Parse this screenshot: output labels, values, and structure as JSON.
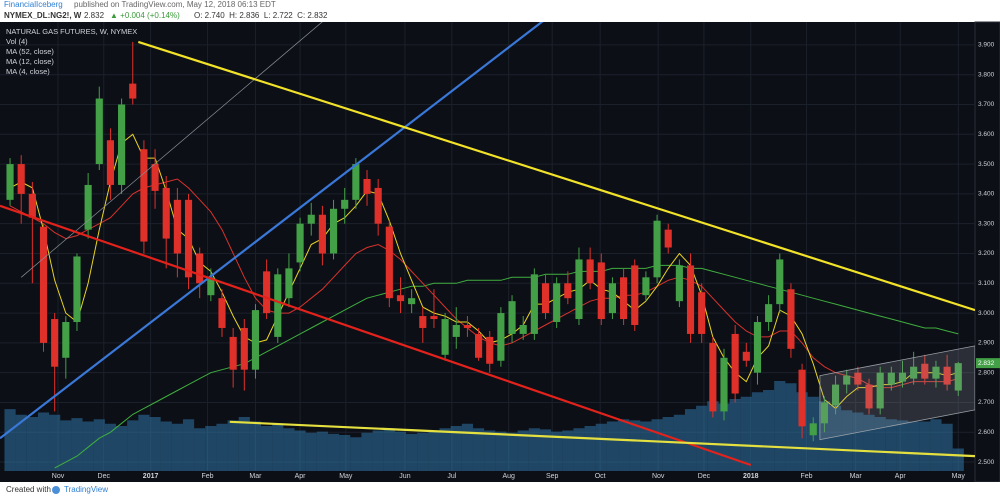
{
  "header": {
    "publisher": "FinancialIceberg",
    "published": "published on TradingView.com, May 12, 2018 06:13 EDT",
    "symbol": "NYMEX_DL:NG2!, W",
    "price": "2.832",
    "change": "▲ +0.004 (+0.14%)",
    "ohlc": "O: 2.740  H: 2.836  L: 2.722  C: 2.832"
  },
  "footer": {
    "created": "Created with",
    "brand": "TradingView"
  },
  "chart_data": {
    "type": "candlestick",
    "title": "NATURAL GAS FUTURES, W, NYMEX",
    "up_color": "#43a047",
    "down_color": "#e0302a",
    "candles": [
      [
        3.38,
        3.52,
        3.36,
        3.5
      ],
      [
        3.5,
        3.53,
        3.3,
        3.4
      ],
      [
        3.4,
        3.44,
        3.1,
        3.32
      ],
      [
        3.29,
        3.3,
        2.87,
        2.9
      ],
      [
        2.98,
        3.0,
        2.67,
        2.82
      ],
      [
        2.85,
        2.99,
        2.78,
        2.97
      ],
      [
        2.97,
        3.2,
        2.94,
        3.19
      ],
      [
        3.28,
        3.47,
        3.25,
        3.43
      ],
      [
        3.5,
        3.76,
        3.48,
        3.72
      ],
      [
        3.58,
        3.62,
        3.38,
        3.43
      ],
      [
        3.43,
        3.72,
        3.4,
        3.7
      ],
      [
        3.77,
        3.91,
        3.7,
        3.72
      ],
      [
        3.55,
        3.58,
        3.2,
        3.24
      ],
      [
        3.5,
        3.55,
        3.35,
        3.41
      ],
      [
        3.42,
        3.46,
        3.15,
        3.25
      ],
      [
        3.38,
        3.42,
        3.12,
        3.2
      ],
      [
        3.38,
        3.4,
        3.08,
        3.12
      ],
      [
        3.2,
        3.22,
        3.05,
        3.1
      ],
      [
        3.06,
        3.15,
        3.04,
        3.12
      ],
      [
        3.05,
        3.08,
        2.92,
        2.95
      ],
      [
        2.92,
        2.95,
        2.75,
        2.81
      ],
      [
        2.95,
        2.98,
        2.74,
        2.81
      ],
      [
        2.81,
        3.03,
        2.78,
        3.01
      ],
      [
        3.14,
        3.18,
        2.98,
        3.0
      ],
      [
        2.92,
        3.15,
        2.9,
        3.13
      ],
      [
        3.05,
        3.2,
        3.02,
        3.15
      ],
      [
        3.17,
        3.32,
        3.14,
        3.3
      ],
      [
        3.3,
        3.37,
        3.26,
        3.33
      ],
      [
        3.33,
        3.36,
        3.16,
        3.2
      ],
      [
        3.2,
        3.38,
        3.18,
        3.35
      ],
      [
        3.35,
        3.42,
        3.3,
        3.38
      ],
      [
        3.38,
        3.52,
        3.35,
        3.5
      ],
      [
        3.45,
        3.48,
        3.36,
        3.4
      ],
      [
        3.42,
        3.45,
        3.26,
        3.3
      ],
      [
        3.29,
        3.31,
        3.02,
        3.05
      ],
      [
        3.06,
        3.12,
        3.0,
        3.04
      ],
      [
        3.03,
        3.08,
        3.0,
        3.05
      ],
      [
        2.99,
        3.02,
        2.9,
        2.95
      ],
      [
        2.99,
        3.08,
        2.95,
        2.98
      ],
      [
        2.86,
        3.0,
        2.84,
        2.98
      ],
      [
        2.92,
        3.02,
        2.88,
        2.96
      ],
      [
        2.96,
        2.99,
        2.92,
        2.95
      ],
      [
        2.93,
        2.95,
        2.84,
        2.85
      ],
      [
        2.92,
        2.94,
        2.8,
        2.83
      ],
      [
        2.84,
        3.02,
        2.82,
        3.0
      ],
      [
        2.93,
        3.06,
        2.9,
        3.04
      ],
      [
        2.93,
        2.99,
        2.91,
        2.96
      ],
      [
        2.93,
        3.15,
        2.91,
        3.13
      ],
      [
        3.1,
        3.13,
        2.98,
        3.0
      ],
      [
        2.97,
        3.12,
        2.95,
        3.1
      ],
      [
        3.1,
        3.14,
        3.03,
        3.05
      ],
      [
        2.98,
        3.22,
        2.96,
        3.18
      ],
      [
        3.18,
        3.22,
        3.08,
        3.1
      ],
      [
        3.17,
        3.2,
        2.96,
        2.98
      ],
      [
        3.0,
        3.12,
        2.98,
        3.1
      ],
      [
        3.12,
        3.15,
        2.96,
        2.98
      ],
      [
        3.16,
        3.18,
        2.94,
        2.96
      ],
      [
        3.06,
        3.14,
        3.04,
        3.12
      ],
      [
        3.12,
        3.33,
        3.1,
        3.31
      ],
      [
        3.28,
        3.3,
        3.2,
        3.22
      ],
      [
        3.04,
        3.18,
        3.02,
        3.16
      ],
      [
        3.16,
        3.2,
        2.9,
        2.93
      ],
      [
        3.07,
        3.1,
        2.9,
        2.93
      ],
      [
        2.9,
        2.92,
        2.65,
        2.67
      ],
      [
        2.67,
        2.88,
        2.64,
        2.85
      ],
      [
        2.93,
        2.96,
        2.7,
        2.73
      ],
      [
        2.87,
        2.9,
        2.82,
        2.84
      ],
      [
        2.8,
        2.99,
        2.76,
        2.97
      ],
      [
        2.97,
        3.06,
        2.94,
        3.03
      ],
      [
        3.03,
        3.2,
        3.0,
        3.18
      ],
      [
        3.08,
        3.1,
        2.85,
        2.88
      ],
      [
        2.81,
        2.83,
        2.58,
        2.62
      ],
      [
        2.59,
        2.65,
        2.57,
        2.63
      ],
      [
        2.63,
        2.72,
        2.6,
        2.7
      ],
      [
        2.69,
        2.79,
        2.66,
        2.76
      ],
      [
        2.76,
        2.81,
        2.73,
        2.79
      ],
      [
        2.8,
        2.82,
        2.74,
        2.76
      ],
      [
        2.76,
        2.78,
        2.66,
        2.68
      ],
      [
        2.68,
        2.82,
        2.66,
        2.8
      ],
      [
        2.76,
        2.82,
        2.74,
        2.8
      ],
      [
        2.77,
        2.84,
        2.75,
        2.8
      ],
      [
        2.78,
        2.87,
        2.76,
        2.82
      ],
      [
        2.83,
        2.86,
        2.76,
        2.78
      ],
      [
        2.78,
        2.84,
        2.75,
        2.82
      ],
      [
        2.82,
        2.86,
        2.74,
        2.76
      ],
      [
        2.74,
        2.836,
        2.722,
        2.832
      ]
    ],
    "volume": {
      "name": "Vol (4)",
      "color": "#2f77a8",
      "values": [
        55,
        50,
        48,
        52,
        50,
        45,
        47,
        44,
        46,
        42,
        40,
        45,
        50,
        48,
        44,
        42,
        46,
        38,
        40,
        42,
        45,
        48,
        44,
        40,
        42,
        38,
        36,
        34,
        35,
        33,
        32,
        30,
        34,
        36,
        38,
        35,
        33,
        34,
        36,
        38,
        40,
        42,
        38,
        36,
        35,
        34,
        36,
        38,
        37,
        35,
        36,
        38,
        40,
        42,
        44,
        46,
        45,
        44,
        46,
        48,
        50,
        55,
        58,
        62,
        60,
        64,
        66,
        70,
        72,
        80,
        78,
        70,
        66,
        62,
        58,
        54,
        52,
        50,
        48,
        46,
        45,
        44,
        44,
        46,
        42,
        20
      ]
    },
    "series": [
      {
        "name": "MA (52, close)",
        "color": "#3fae3f",
        "values": [
          null,
          null,
          null,
          null,
          2.48,
          2.5,
          2.52,
          2.55,
          2.58,
          2.6,
          2.63,
          2.66,
          2.68,
          2.7,
          2.72,
          2.74,
          2.76,
          2.78,
          2.8,
          2.81,
          2.82,
          2.83,
          2.85,
          2.87,
          2.89,
          2.91,
          2.93,
          2.95,
          2.97,
          2.99,
          3.01,
          3.03,
          3.05,
          3.06,
          3.07,
          3.08,
          3.09,
          3.09,
          3.1,
          3.1,
          3.1,
          3.11,
          3.11,
          3.11,
          3.11,
          3.12,
          3.12,
          3.12,
          3.13,
          3.13,
          3.13,
          3.14,
          3.14,
          3.14,
          3.15,
          3.15,
          3.15,
          3.15,
          3.16,
          3.16,
          3.16,
          3.15,
          3.15,
          3.14,
          3.13,
          3.12,
          3.11,
          3.1,
          3.09,
          3.08,
          3.07,
          3.06,
          3.05,
          3.04,
          3.03,
          3.02,
          3.01,
          3.0,
          2.99,
          2.98,
          2.97,
          2.96,
          2.95,
          2.95,
          2.94,
          2.93
        ]
      },
      {
        "name": "MA (12, close)",
        "color": "#d8322c",
        "values": [
          3.36,
          3.34,
          3.32,
          3.3,
          3.27,
          3.25,
          3.26,
          3.28,
          3.3,
          3.32,
          3.36,
          3.4,
          3.42,
          3.43,
          3.44,
          3.45,
          3.42,
          3.38,
          3.34,
          3.28,
          3.2,
          3.12,
          3.05,
          3.01,
          3.0,
          3.0,
          3.02,
          3.05,
          3.08,
          3.12,
          3.16,
          3.2,
          3.22,
          3.23,
          3.21,
          3.18,
          3.14,
          3.1,
          3.06,
          3.02,
          2.98,
          2.95,
          2.92,
          2.9,
          2.89,
          2.9,
          2.92,
          2.94,
          2.96,
          2.98,
          3.0,
          3.02,
          3.04,
          3.05,
          3.05,
          3.06,
          3.06,
          3.07,
          3.09,
          3.11,
          3.12,
          3.11,
          3.09,
          3.05,
          3.01,
          2.97,
          2.94,
          2.92,
          2.92,
          2.94,
          2.94,
          2.9,
          2.85,
          2.82,
          2.8,
          2.79,
          2.78,
          2.76,
          2.75,
          2.75,
          2.76,
          2.77,
          2.77,
          2.77,
          2.77,
          2.78
        ]
      },
      {
        "name": "MA (4, close)",
        "color": "#e8d422",
        "values": [
          3.42,
          3.44,
          3.42,
          3.28,
          3.11,
          3.0,
          2.97,
          3.1,
          3.28,
          3.44,
          3.57,
          3.6,
          3.52,
          3.52,
          3.41,
          3.28,
          3.25,
          3.17,
          3.14,
          3.07,
          2.99,
          2.92,
          2.9,
          2.91,
          2.99,
          3.07,
          3.15,
          3.23,
          3.25,
          3.3,
          3.32,
          3.36,
          3.41,
          3.4,
          3.31,
          3.2,
          3.11,
          3.02,
          3.0,
          2.99,
          2.97,
          2.97,
          2.94,
          2.9,
          2.91,
          2.93,
          2.96,
          3.03,
          3.03,
          3.05,
          3.07,
          3.08,
          3.11,
          3.08,
          3.07,
          3.04,
          3.01,
          3.04,
          3.09,
          3.15,
          3.2,
          3.16,
          3.06,
          2.92,
          2.85,
          2.8,
          2.77,
          2.85,
          2.89,
          3.01,
          2.99,
          2.93,
          2.83,
          2.71,
          2.68,
          2.72,
          2.75,
          2.75,
          2.76,
          2.76,
          2.77,
          2.8,
          2.8,
          2.8,
          2.79,
          2.8
        ]
      }
    ],
    "drawings": [
      {
        "shape": "polygon",
        "color": "#9aa0a8",
        "points": [
          [
            72.6,
            2.79
          ],
          [
            86.5,
            2.89
          ],
          [
            86.5,
            2.675
          ],
          [
            72.6,
            2.575
          ]
        ]
      },
      {
        "shape": "line",
        "color": "#8a8f96",
        "points": [
          [
            1,
            3.12
          ],
          [
            28.7,
            4.0
          ]
        ]
      },
      {
        "shape": "line",
        "color": "#3a78d8",
        "points": [
          [
            -0.9,
            2.58
          ],
          [
            50.2,
            4.05
          ]
        ]
      },
      {
        "shape": "line",
        "color": "#e3221c",
        "points": [
          [
            -0.9,
            3.36
          ],
          [
            66.4,
            2.49
          ]
        ]
      },
      {
        "shape": "line",
        "color": "#f2e22a",
        "points": [
          [
            11.5,
            3.91
          ],
          [
            86.5,
            3.01
          ]
        ]
      },
      {
        "shape": "line",
        "color": "#e4e040",
        "points": [
          [
            19.7,
            2.635
          ],
          [
            86.5,
            2.52
          ]
        ]
      }
    ],
    "xlim": [
      -0.9,
      86.5
    ],
    "xticks": [
      {
        "value": 4.3,
        "label": "Nov"
      },
      {
        "value": 8.4,
        "label": "Dec"
      },
      {
        "value": 12.6,
        "label": "2017"
      },
      {
        "value": 17.7,
        "label": "Feb"
      },
      {
        "value": 22,
        "label": "Mar"
      },
      {
        "value": 26,
        "label": "Apr"
      },
      {
        "value": 30.1,
        "label": "May"
      },
      {
        "value": 35.4,
        "label": "Jun"
      },
      {
        "value": 39.6,
        "label": "Jul"
      },
      {
        "value": 44.7,
        "label": "Aug"
      },
      {
        "value": 48.6,
        "label": "Sep"
      },
      {
        "value": 52.9,
        "label": "Oct"
      },
      {
        "value": 58.1,
        "label": "Nov"
      },
      {
        "value": 62.2,
        "label": "Dec"
      },
      {
        "value": 66.4,
        "label": "2018"
      },
      {
        "value": 71.4,
        "label": "Feb"
      },
      {
        "value": 75.8,
        "label": "Mar"
      },
      {
        "value": 79.8,
        "label": "Apr"
      },
      {
        "value": 85,
        "label": "May"
      }
    ],
    "ylim": [
      2.47,
      3.95
    ],
    "yticks": [
      {
        "value": 2.5,
        "label": "2.500"
      },
      {
        "value": 2.6,
        "label": "2.600"
      },
      {
        "value": 2.7,
        "label": "2.700"
      },
      {
        "value": 2.8,
        "label": "2.800"
      },
      {
        "value": 2.9,
        "label": "2.900"
      },
      {
        "value": 3.0,
        "label": "3.000"
      },
      {
        "value": 3.1,
        "label": "3.100"
      },
      {
        "value": 3.2,
        "label": "3.200"
      },
      {
        "value": 3.3,
        "label": "3.300"
      },
      {
        "value": 3.4,
        "label": "3.400"
      },
      {
        "value": 3.5,
        "label": "3.500"
      },
      {
        "value": 3.6,
        "label": "3.600"
      },
      {
        "value": 3.7,
        "label": "3.700"
      },
      {
        "value": 3.8,
        "label": "3.800"
      },
      {
        "value": 3.9,
        "label": "3.900"
      }
    ],
    "grid": true
  }
}
